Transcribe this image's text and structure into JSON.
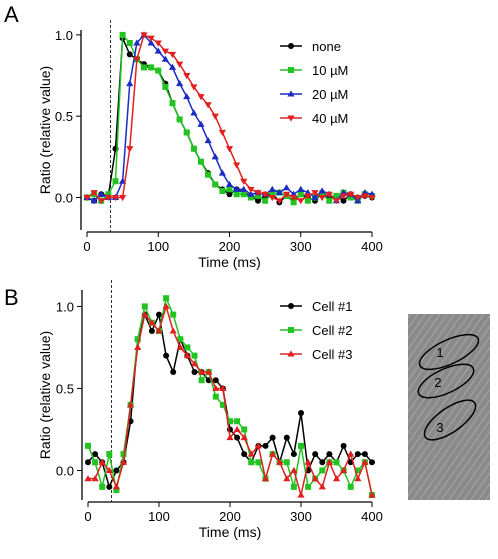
{
  "chart_data": [
    {
      "type": "line",
      "panel_label": "A",
      "xlabel": "Time (ms)",
      "ylabel": "Ratio (relative value)",
      "xlim": [
        0,
        400
      ],
      "xticks": [
        0,
        100,
        200,
        300,
        400
      ],
      "ylim": [
        -0.2,
        1.03
      ],
      "yticks": [
        {
          "value": 0,
          "label": "0.0"
        },
        {
          "value": 0.5,
          "label": "0.5"
        },
        {
          "value": 1,
          "label": "1.0"
        }
      ],
      "marker_x": 33,
      "grid": false,
      "legend": "upper right",
      "x": [
        0,
        10,
        20,
        30,
        40,
        50,
        60,
        70,
        80,
        90,
        100,
        110,
        120,
        130,
        140,
        150,
        160,
        170,
        180,
        190,
        200,
        210,
        220,
        230,
        240,
        250,
        260,
        270,
        280,
        290,
        300,
        310,
        320,
        330,
        340,
        350,
        360,
        370,
        380,
        390,
        400
      ],
      "series": [
        {
          "name": "none",
          "color": "#000000",
          "marker": "circle",
          "values": [
            0,
            -0.02,
            0.02,
            0.01,
            0.3,
            0.98,
            0.88,
            0.85,
            0.82,
            0.8,
            0.78,
            0.7,
            0.58,
            0.48,
            0.4,
            0.3,
            0.22,
            0.15,
            0.08,
            0.05,
            0.02,
            0.05,
            0.03,
            0.01,
            -0.02,
            0.01,
            0.03,
            -0.03,
            0.01,
            -0.02,
            0.02,
            0,
            -0.02,
            0.03,
            0,
            0.01,
            -0.02,
            0.02,
            0,
            0.01,
            0
          ]
        },
        {
          "name": "10 µM",
          "color": "#22c422",
          "marker": "square",
          "values": [
            0,
            0.02,
            -0.02,
            0.02,
            0.1,
            1.0,
            0.95,
            0.85,
            0.8,
            0.8,
            0.78,
            0.68,
            0.58,
            0.48,
            0.4,
            0.3,
            0.22,
            0.14,
            0.08,
            0.04,
            0.05,
            0.02,
            0.02,
            0,
            0.01,
            -0.02,
            0.02,
            0.03,
            0.01,
            -0.03,
            0.02,
            -0.02,
            0,
            0.02,
            -0.02,
            0.01,
            0.03,
            0,
            -0.02,
            0.02,
            0.01
          ]
        },
        {
          "name": "20 µM",
          "color": "#1a2cc4",
          "marker": "triangle-up",
          "values": [
            0,
            -0.02,
            0.02,
            0,
            0,
            0.1,
            0.7,
            0.95,
            1.0,
            0.95,
            0.9,
            0.85,
            0.8,
            0.7,
            0.62,
            0.52,
            0.45,
            0.35,
            0.25,
            0.15,
            0.08,
            0.05,
            0.05,
            0.02,
            0.03,
            0.02,
            0.05,
            0.03,
            0.06,
            0.02,
            0.05,
            0.03,
            0,
            0.04,
            0.02,
            -0.02,
            0.03,
            0.02,
            -0.02,
            0.03,
            0.02
          ]
        },
        {
          "name": "40 µM",
          "color": "#e02020",
          "marker": "triangle-down",
          "values": [
            0,
            0.03,
            -0.02,
            0,
            0,
            0,
            0.3,
            0.85,
            1.0,
            0.98,
            0.95,
            0.9,
            0.88,
            0.82,
            0.75,
            0.68,
            0.62,
            0.57,
            0.5,
            0.4,
            0.3,
            0.2,
            0.1,
            0.05,
            0.03,
            0.02,
            0,
            -0.02,
            0.02,
            0,
            -0.02,
            0.01,
            0.03,
            0,
            0.02,
            -0.02,
            0.01,
            0.02,
            0,
            0.01,
            0
          ]
        }
      ]
    },
    {
      "type": "line",
      "panel_label": "B",
      "xlabel": "Time (ms)",
      "ylabel": "Ratio (relative value)",
      "xlim": [
        0,
        400
      ],
      "xticks": [
        0,
        100,
        200,
        300,
        400
      ],
      "ylim": [
        -0.18,
        1.1
      ],
      "yticks": [
        {
          "value": 0,
          "label": "0.0"
        },
        {
          "value": 0.5,
          "label": "0.5"
        },
        {
          "value": 1,
          "label": "1.0"
        }
      ],
      "marker_x": 33,
      "grid": false,
      "legend": "upper right",
      "x": [
        0,
        10,
        20,
        30,
        40,
        50,
        60,
        70,
        80,
        90,
        100,
        110,
        120,
        130,
        140,
        150,
        160,
        170,
        180,
        190,
        200,
        210,
        220,
        230,
        240,
        250,
        260,
        270,
        280,
        290,
        300,
        310,
        320,
        330,
        340,
        350,
        360,
        370,
        380,
        390,
        400
      ],
      "series": [
        {
          "name": "Cell #1",
          "color": "#000000",
          "marker": "circle",
          "values": [
            0.05,
            0.1,
            0.05,
            -0.1,
            0,
            0.05,
            0.3,
            0.8,
            0.95,
            0.85,
            0.95,
            0.7,
            0.6,
            0.8,
            0.7,
            0.6,
            0.6,
            0.55,
            0.55,
            0.5,
            0.25,
            0.2,
            0.1,
            0.05,
            0.15,
            0.15,
            0.2,
            0.05,
            0.2,
            0.1,
            0.35,
            0,
            0.1,
            0.05,
            0.1,
            0.05,
            0.15,
            0.05,
            0.1,
            0.1,
            0.05
          ]
        },
        {
          "name": "Cell #2",
          "color": "#22c422",
          "marker": "square",
          "values": [
            0.15,
            0.05,
            -0.1,
            0.1,
            -0.12,
            0.1,
            0.4,
            0.8,
            1.0,
            0.9,
            0.85,
            1.05,
            0.95,
            0.8,
            0.75,
            0.7,
            0.55,
            0.6,
            0.45,
            0.4,
            0.3,
            0.3,
            0.25,
            0.05,
            0.05,
            -0.05,
            0.1,
            0.05,
            0.05,
            -0.1,
            0.15,
            -0.1,
            -0.05,
            0,
            0.05,
            0.05,
            0,
            -0.1,
            0,
            0.05,
            -0.15
          ]
        },
        {
          "name": "Cell #3",
          "color": "#e02020",
          "marker": "triangle-up",
          "values": [
            -0.05,
            -0.05,
            0.05,
            0,
            -0.1,
            0.05,
            0.4,
            0.75,
            0.95,
            0.9,
            0.85,
            1.0,
            0.85,
            0.75,
            0.7,
            0.65,
            0.6,
            0.6,
            0.5,
            0.5,
            0.2,
            0.25,
            0.2,
            0.1,
            0.15,
            -0.05,
            0.1,
            0.05,
            -0.05,
            0,
            -0.15,
            0.05,
            -0.05,
            -0.1,
            0.05,
            -0.05,
            0,
            0.1,
            -0.05,
            0.05,
            -0.15
          ]
        }
      ]
    }
  ],
  "image": {
    "roi_labels": [
      "1",
      "2",
      "3"
    ]
  }
}
